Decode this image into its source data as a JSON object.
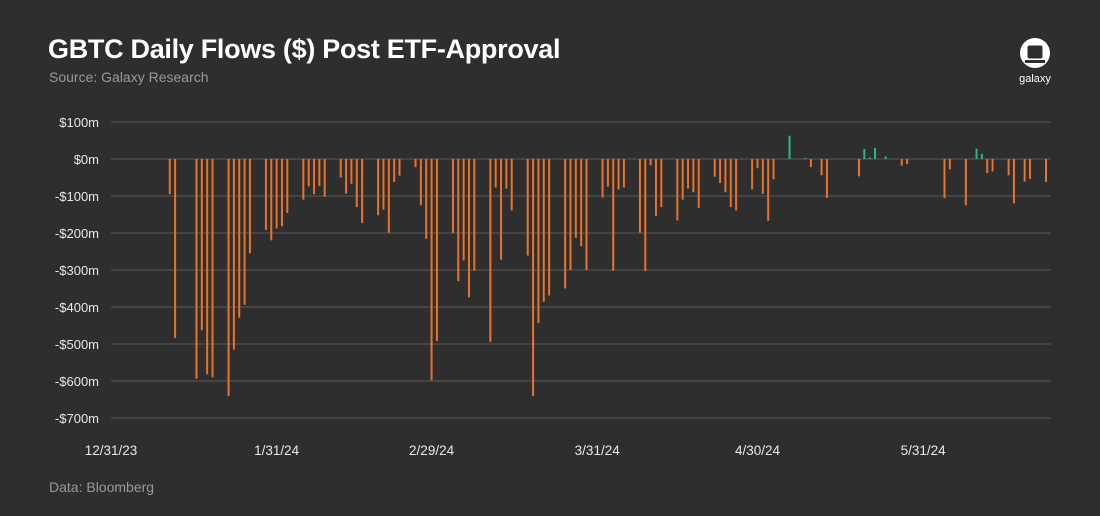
{
  "title": "GBTC Daily Flows ($) Post ETF-Approval",
  "subtitle": "Source: Galaxy Research",
  "footer": "Data: Bloomberg",
  "logo_text": "galaxy",
  "colors": {
    "background": "#2e2e2e",
    "outflow": "#e8732a",
    "inflow": "#2ab58a",
    "grid": "#5a5a5a",
    "text": "#e8e8e8"
  },
  "chart_data": {
    "type": "bar",
    "title": "GBTC Daily Flows ($) Post ETF-Approval",
    "xlabel": "",
    "ylabel": "",
    "ylim": [
      -700,
      100
    ],
    "y_ticks": [
      100,
      0,
      -100,
      -200,
      -300,
      -400,
      -500,
      -600,
      -700
    ],
    "y_tick_labels": [
      "$100m",
      "$0m",
      "-$100m",
      "-$200m",
      "-$300m",
      "-$400m",
      "-$500m",
      "-$600m",
      "-$700m"
    ],
    "x_tick_labels": [
      "12/31/23",
      "1/31/24",
      "2/29/24",
      "3/31/24",
      "4/30/24",
      "5/31/24"
    ],
    "x_tick_days": [
      0,
      31,
      60,
      91,
      121,
      152
    ],
    "grid": true,
    "legend": "none",
    "units": "$ millions",
    "series": [
      {
        "name": "GBTC daily flow",
        "points": [
          {
            "day": 11,
            "value": -95
          },
          {
            "day": 12,
            "value": -484
          },
          {
            "day": 16,
            "value": -594
          },
          {
            "day": 17,
            "value": -463
          },
          {
            "day": 18,
            "value": -582
          },
          {
            "day": 19,
            "value": -590
          },
          {
            "day": 22,
            "value": -641
          },
          {
            "day": 23,
            "value": -515
          },
          {
            "day": 24,
            "value": -429
          },
          {
            "day": 25,
            "value": -394
          },
          {
            "day": 26,
            "value": -255
          },
          {
            "day": 29,
            "value": -192
          },
          {
            "day": 30,
            "value": -220
          },
          {
            "day": 31,
            "value": -188
          },
          {
            "day": 32,
            "value": -182
          },
          {
            "day": 33,
            "value": -146
          },
          {
            "day": 36,
            "value": -110
          },
          {
            "day": 37,
            "value": -74
          },
          {
            "day": 38,
            "value": -95
          },
          {
            "day": 39,
            "value": -73
          },
          {
            "day": 40,
            "value": -102
          },
          {
            "day": 43,
            "value": -50
          },
          {
            "day": 44,
            "value": -94
          },
          {
            "day": 45,
            "value": -67
          },
          {
            "day": 46,
            "value": -130
          },
          {
            "day": 47,
            "value": -173
          },
          {
            "day": 50,
            "value": -152
          },
          {
            "day": 51,
            "value": -137
          },
          {
            "day": 52,
            "value": -199
          },
          {
            "day": 53,
            "value": -62
          },
          {
            "day": 54,
            "value": -45
          },
          {
            "day": 57,
            "value": -22
          },
          {
            "day": 58,
            "value": -125
          },
          {
            "day": 59,
            "value": -216
          },
          {
            "day": 60,
            "value": -598
          },
          {
            "day": 61,
            "value": -492
          },
          {
            "day": 64,
            "value": -200
          },
          {
            "day": 65,
            "value": -330
          },
          {
            "day": 66,
            "value": -274
          },
          {
            "day": 67,
            "value": -374
          },
          {
            "day": 68,
            "value": -302
          },
          {
            "day": 71,
            "value": -494
          },
          {
            "day": 72,
            "value": -77
          },
          {
            "day": 73,
            "value": -272
          },
          {
            "day": 74,
            "value": -80
          },
          {
            "day": 75,
            "value": -139
          },
          {
            "day": 78,
            "value": -261
          },
          {
            "day": 79,
            "value": -641
          },
          {
            "day": 80,
            "value": -443
          },
          {
            "day": 81,
            "value": -386
          },
          {
            "day": 82,
            "value": -369
          },
          {
            "day": 85,
            "value": -350
          },
          {
            "day": 86,
            "value": -300
          },
          {
            "day": 87,
            "value": -213
          },
          {
            "day": 88,
            "value": -236
          },
          {
            "day": 89,
            "value": -300
          },
          {
            "day": 92,
            "value": -104
          },
          {
            "day": 93,
            "value": -75
          },
          {
            "day": 94,
            "value": -302
          },
          {
            "day": 95,
            "value": -82
          },
          {
            "day": 96,
            "value": -77
          },
          {
            "day": 99,
            "value": -199
          },
          {
            "day": 100,
            "value": -303
          },
          {
            "day": 101,
            "value": -17
          },
          {
            "day": 102,
            "value": -154
          },
          {
            "day": 103,
            "value": -130
          },
          {
            "day": 106,
            "value": -166
          },
          {
            "day": 107,
            "value": -110
          },
          {
            "day": 108,
            "value": -80
          },
          {
            "day": 109,
            "value": -90
          },
          {
            "day": 110,
            "value": -132
          },
          {
            "day": 113,
            "value": -48
          },
          {
            "day": 114,
            "value": -65
          },
          {
            "day": 115,
            "value": -90
          },
          {
            "day": 116,
            "value": -130
          },
          {
            "day": 117,
            "value": -139
          },
          {
            "day": 120,
            "value": -82
          },
          {
            "day": 121,
            "value": -25
          },
          {
            "day": 122,
            "value": -94
          },
          {
            "day": 123,
            "value": -167
          },
          {
            "day": 124,
            "value": -55
          },
          {
            "day": 127,
            "value": 63
          },
          {
            "day": 130,
            "value": 3
          },
          {
            "day": 131,
            "value": -22
          },
          {
            "day": 133,
            "value": -44
          },
          {
            "day": 134,
            "value": -105
          },
          {
            "day": 140,
            "value": -47
          },
          {
            "day": 141,
            "value": 27
          },
          {
            "day": 142,
            "value": 4
          },
          {
            "day": 143,
            "value": 30
          },
          {
            "day": 145,
            "value": 7
          },
          {
            "day": 148,
            "value": -18
          },
          {
            "day": 149,
            "value": -14
          },
          {
            "day": 156,
            "value": -106
          },
          {
            "day": 157,
            "value": -28
          },
          {
            "day": 160,
            "value": -125
          },
          {
            "day": 162,
            "value": 28
          },
          {
            "day": 163,
            "value": 14
          },
          {
            "day": 164,
            "value": -38
          },
          {
            "day": 165,
            "value": -34
          },
          {
            "day": 168,
            "value": -44
          },
          {
            "day": 169,
            "value": -120
          },
          {
            "day": 171,
            "value": -61
          },
          {
            "day": 172,
            "value": -54
          },
          {
            "day": 175,
            "value": -62
          }
        ]
      }
    ]
  }
}
